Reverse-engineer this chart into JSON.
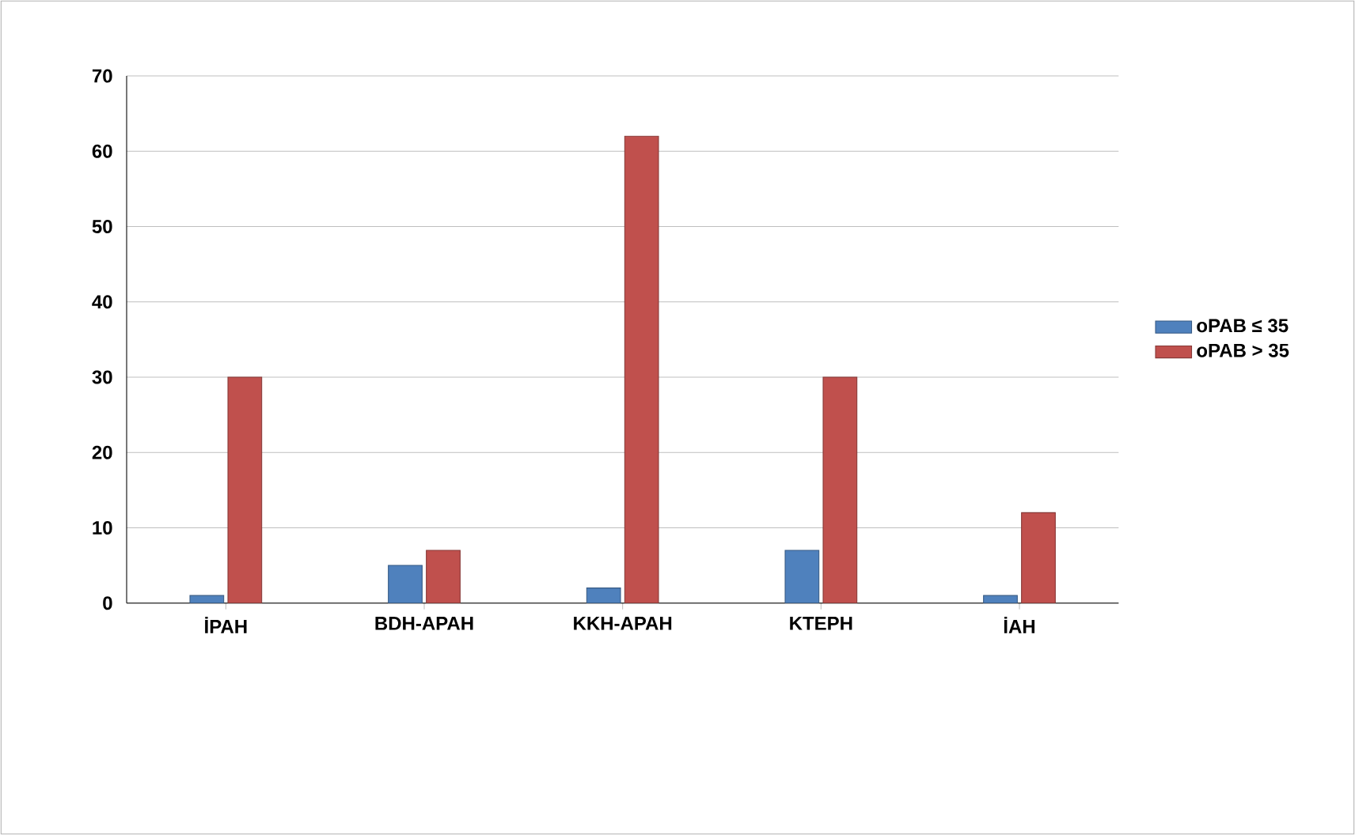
{
  "chart_data": {
    "type": "bar",
    "categories": [
      "İPAH",
      "BDH-APAH",
      "KKH-APAH",
      "KTEPH",
      "İAH"
    ],
    "series": [
      {
        "name": "oPAB ≤ 35",
        "color": "#4f81bd",
        "values": [
          1,
          5,
          2,
          7,
          1
        ]
      },
      {
        "name": "oPAB > 35",
        "color": "#c0504d",
        "values": [
          30,
          7,
          62,
          30,
          12
        ]
      }
    ],
    "ylim": [
      0,
      70
    ],
    "yticks": [
      0,
      10,
      20,
      30,
      40,
      50,
      60,
      70
    ],
    "grid": "y",
    "legend": "right"
  }
}
